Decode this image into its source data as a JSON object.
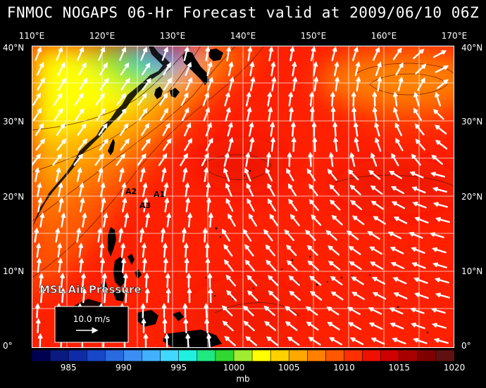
{
  "title": "FNMOC NOGAPS 06-Hr Forecast valid at 2009/06/10 06Z",
  "lon_labels": [
    "110°E",
    "120°E",
    "130°E",
    "140°E",
    "150°E",
    "160°E",
    "170°E"
  ],
  "lat_labels": [
    "40°N",
    "30°N",
    "20°N",
    "10°N",
    "0°"
  ],
  "map_labels": {
    "product": "MSL Air Pressure",
    "scale": "10.0 m/s",
    "points": [
      "A1",
      "A2",
      "A3"
    ]
  },
  "colorbar": {
    "ticks": [
      "985",
      "990",
      "995",
      "1000",
      "1005",
      "1010",
      "1015",
      "1020"
    ],
    "unit": "mb",
    "colors": [
      "#000050",
      "#0a1a80",
      "#0f2ca8",
      "#1848c8",
      "#2a6ae0",
      "#3c8ef2",
      "#42b0ff",
      "#40d8ff",
      "#20f0e0",
      "#20e880",
      "#30d830",
      "#a0ec30",
      "#ffff00",
      "#ffd000",
      "#ffa800",
      "#ff8000",
      "#ff5800",
      "#ff3000",
      "#f01000",
      "#d00000",
      "#a80000",
      "#800000",
      "#601010"
    ]
  }
}
